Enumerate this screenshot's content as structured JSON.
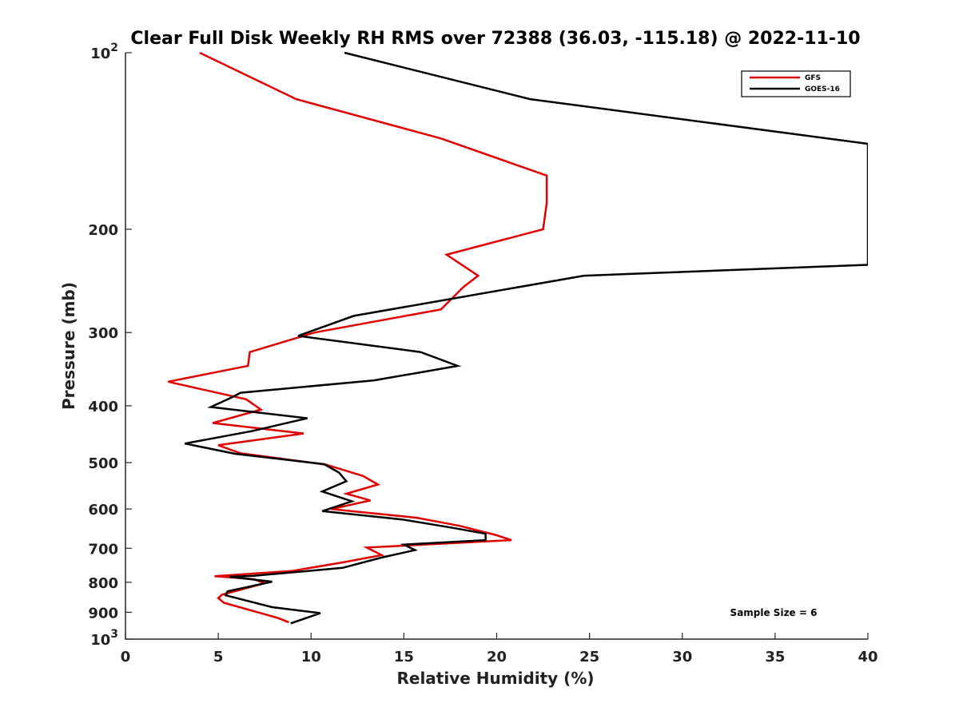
{
  "chart_data": {
    "type": "line",
    "title": "Clear Full Disk Weekly RH RMS over 72388 (36.03, -115.18) @ 2022-11-10",
    "xlabel": "Relative Humidity (%)",
    "ylabel": "Pressure (mb)",
    "xlim": [
      0,
      40
    ],
    "ylim": [
      100,
      1000
    ],
    "y_scale": "log",
    "y_reversed": true,
    "x_ticks": [
      "0",
      "5",
      "10",
      "15",
      "20",
      "25",
      "30",
      "35",
      "40"
    ],
    "y_ticks": [
      {
        "value": 100,
        "base": "10",
        "exp": "2"
      },
      {
        "value": 200,
        "label": "200"
      },
      {
        "value": 300,
        "label": "300"
      },
      {
        "value": 400,
        "label": "400"
      },
      {
        "value": 500,
        "label": "500"
      },
      {
        "value": 600,
        "label": "600"
      },
      {
        "value": 700,
        "label": "700"
      },
      {
        "value": 800,
        "label": "800"
      },
      {
        "value": 900,
        "label": "900"
      },
      {
        "value": 1000,
        "base": "10",
        "exp": "3"
      }
    ],
    "legend_position": "top-right",
    "annotation": "Sample Size = 6",
    "series": [
      {
        "name": "GFS",
        "color": "#e00000",
        "points": [
          [
            4.0,
            100
          ],
          [
            9.2,
            120
          ],
          [
            17.0,
            140
          ],
          [
            22.7,
            162
          ],
          [
            22.7,
            180
          ],
          [
            22.5,
            200
          ],
          [
            17.3,
            221
          ],
          [
            19.0,
            240
          ],
          [
            18.2,
            251
          ],
          [
            17.0,
            274
          ],
          [
            10.2,
            300
          ],
          [
            6.7,
            324
          ],
          [
            6.6,
            342
          ],
          [
            2.3,
            364
          ],
          [
            6.5,
            390
          ],
          [
            7.3,
            406
          ],
          [
            4.7,
            428
          ],
          [
            9.6,
            446
          ],
          [
            5.0,
            467
          ],
          [
            6.2,
            482
          ],
          [
            10.8,
            504
          ],
          [
            12.8,
            527
          ],
          [
            13.6,
            545
          ],
          [
            11.9,
            565
          ],
          [
            13.2,
            580
          ],
          [
            11.1,
            600
          ],
          [
            15.7,
            621
          ],
          [
            18.0,
            641
          ],
          [
            20.0,
            665
          ],
          [
            20.8,
            678
          ],
          [
            13.0,
            698
          ],
          [
            13.8,
            719
          ],
          [
            11.7,
            740
          ],
          [
            9.0,
            765
          ],
          [
            4.8,
            781
          ],
          [
            6.9,
            790
          ],
          [
            7.5,
            803
          ],
          [
            5.2,
            840
          ],
          [
            5.0,
            851
          ],
          [
            5.3,
            867
          ],
          [
            8.2,
            920
          ],
          [
            8.8,
            936
          ]
        ]
      },
      {
        "name": "GOES-16",
        "color": "#000000",
        "points": [
          [
            11.8,
            100
          ],
          [
            21.8,
            120
          ],
          [
            40.0,
            143
          ],
          [
            40.0,
            230
          ],
          [
            24.7,
            240
          ],
          [
            12.3,
            281
          ],
          [
            9.3,
            304
          ],
          [
            15.9,
            324
          ],
          [
            17.9,
            342
          ],
          [
            13.4,
            362
          ],
          [
            6.2,
            380
          ],
          [
            5.8,
            386
          ],
          [
            4.6,
            402
          ],
          [
            9.8,
            420
          ],
          [
            6.8,
            442
          ],
          [
            3.2,
            464
          ],
          [
            5.9,
            483
          ],
          [
            10.7,
            503
          ],
          [
            11.5,
            520
          ],
          [
            11.9,
            538
          ],
          [
            10.6,
            560
          ],
          [
            12.2,
            582
          ],
          [
            10.6,
            605
          ],
          [
            14.9,
            625
          ],
          [
            17.5,
            645
          ],
          [
            19.4,
            661
          ],
          [
            19.4,
            678
          ],
          [
            15.0,
            690
          ],
          [
            15.6,
            705
          ],
          [
            13.8,
            726
          ],
          [
            11.7,
            756
          ],
          [
            6.9,
            780
          ],
          [
            5.6,
            783
          ],
          [
            7.9,
            798
          ],
          [
            5.5,
            829
          ],
          [
            5.4,
            842
          ],
          [
            7.9,
            882
          ],
          [
            10.5,
            903
          ],
          [
            8.9,
            940
          ]
        ]
      }
    ]
  }
}
